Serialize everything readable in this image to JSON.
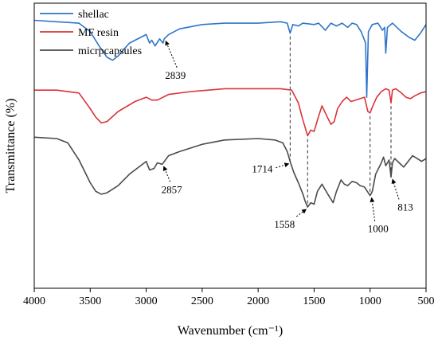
{
  "chart_data": {
    "type": "line",
    "xlabel": "Wavenumber (cm⁻¹)",
    "ylabel": "Transmittance (%)",
    "xlim": [
      4000,
      500
    ],
    "x_reversed": true,
    "x_ticks": [
      4000,
      3500,
      3000,
      2500,
      2000,
      1500,
      1000,
      500
    ],
    "y_ticks": [],
    "grid": false,
    "legend_position": "top-left",
    "series": [
      {
        "name": "shellac",
        "color": "#2e75c8",
        "points": [
          [
            4000,
            0.94
          ],
          [
            3800,
            0.935
          ],
          [
            3600,
            0.93
          ],
          [
            3500,
            0.9
          ],
          [
            3420,
            0.85
          ],
          [
            3350,
            0.81
          ],
          [
            3300,
            0.8
          ],
          [
            3250,
            0.815
          ],
          [
            3150,
            0.86
          ],
          [
            3050,
            0.88
          ],
          [
            3000,
            0.89
          ],
          [
            2970,
            0.86
          ],
          [
            2950,
            0.87
          ],
          [
            2920,
            0.85
          ],
          [
            2880,
            0.875
          ],
          [
            2850,
            0.86
          ],
          [
            2839,
            0.875
          ],
          [
            2800,
            0.89
          ],
          [
            2700,
            0.91
          ],
          [
            2500,
            0.925
          ],
          [
            2300,
            0.93
          ],
          [
            2000,
            0.93
          ],
          [
            1800,
            0.935
          ],
          [
            1740,
            0.93
          ],
          [
            1714,
            0.895
          ],
          [
            1690,
            0.925
          ],
          [
            1640,
            0.92
          ],
          [
            1600,
            0.93
          ],
          [
            1500,
            0.925
          ],
          [
            1460,
            0.93
          ],
          [
            1400,
            0.905
          ],
          [
            1350,
            0.93
          ],
          [
            1300,
            0.92
          ],
          [
            1250,
            0.93
          ],
          [
            1200,
            0.915
          ],
          [
            1160,
            0.93
          ],
          [
            1120,
            0.925
          ],
          [
            1080,
            0.9
          ],
          [
            1040,
            0.86
          ],
          [
            1030,
            0.67
          ],
          [
            1015,
            0.9
          ],
          [
            980,
            0.925
          ],
          [
            930,
            0.93
          ],
          [
            890,
            0.905
          ],
          [
            870,
            0.915
          ],
          [
            860,
            0.825
          ],
          [
            845,
            0.915
          ],
          [
            800,
            0.93
          ],
          [
            720,
            0.9
          ],
          [
            650,
            0.88
          ],
          [
            600,
            0.87
          ],
          [
            550,
            0.895
          ],
          [
            500,
            0.925
          ]
        ]
      },
      {
        "name": "MF resin",
        "color": "#d9343a",
        "points": [
          [
            4000,
            0.695
          ],
          [
            3800,
            0.695
          ],
          [
            3600,
            0.685
          ],
          [
            3500,
            0.63
          ],
          [
            3450,
            0.6
          ],
          [
            3400,
            0.58
          ],
          [
            3350,
            0.585
          ],
          [
            3250,
            0.62
          ],
          [
            3100,
            0.655
          ],
          [
            3000,
            0.67
          ],
          [
            2950,
            0.66
          ],
          [
            2900,
            0.66
          ],
          [
            2800,
            0.68
          ],
          [
            2600,
            0.69
          ],
          [
            2300,
            0.7
          ],
          [
            2000,
            0.7
          ],
          [
            1800,
            0.7
          ],
          [
            1700,
            0.695
          ],
          [
            1640,
            0.65
          ],
          [
            1600,
            0.59
          ],
          [
            1558,
            0.535
          ],
          [
            1530,
            0.555
          ],
          [
            1500,
            0.55
          ],
          [
            1470,
            0.59
          ],
          [
            1430,
            0.64
          ],
          [
            1400,
            0.615
          ],
          [
            1350,
            0.575
          ],
          [
            1320,
            0.585
          ],
          [
            1290,
            0.63
          ],
          [
            1250,
            0.655
          ],
          [
            1210,
            0.67
          ],
          [
            1170,
            0.655
          ],
          [
            1130,
            0.66
          ],
          [
            1090,
            0.665
          ],
          [
            1050,
            0.67
          ],
          [
            1020,
            0.62
          ],
          [
            1000,
            0.615
          ],
          [
            975,
            0.64
          ],
          [
            940,
            0.67
          ],
          [
            900,
            0.69
          ],
          [
            860,
            0.7
          ],
          [
            830,
            0.695
          ],
          [
            813,
            0.65
          ],
          [
            800,
            0.695
          ],
          [
            770,
            0.7
          ],
          [
            720,
            0.685
          ],
          [
            680,
            0.67
          ],
          [
            640,
            0.665
          ],
          [
            600,
            0.675
          ],
          [
            550,
            0.685
          ],
          [
            500,
            0.69
          ]
        ]
      },
      {
        "name": "micrpcapsules",
        "color": "#4b4b4b",
        "points": [
          [
            4000,
            0.53
          ],
          [
            3800,
            0.525
          ],
          [
            3700,
            0.51
          ],
          [
            3600,
            0.45
          ],
          [
            3500,
            0.37
          ],
          [
            3450,
            0.34
          ],
          [
            3400,
            0.33
          ],
          [
            3350,
            0.335
          ],
          [
            3250,
            0.36
          ],
          [
            3150,
            0.4
          ],
          [
            3050,
            0.43
          ],
          [
            3000,
            0.445
          ],
          [
            2970,
            0.415
          ],
          [
            2930,
            0.42
          ],
          [
            2900,
            0.44
          ],
          [
            2857,
            0.435
          ],
          [
            2800,
            0.465
          ],
          [
            2700,
            0.48
          ],
          [
            2500,
            0.505
          ],
          [
            2300,
            0.52
          ],
          [
            2000,
            0.525
          ],
          [
            1850,
            0.52
          ],
          [
            1780,
            0.51
          ],
          [
            1740,
            0.48
          ],
          [
            1714,
            0.445
          ],
          [
            1680,
            0.405
          ],
          [
            1640,
            0.37
          ],
          [
            1600,
            0.33
          ],
          [
            1580,
            0.305
          ],
          [
            1558,
            0.285
          ],
          [
            1530,
            0.3
          ],
          [
            1500,
            0.295
          ],
          [
            1470,
            0.34
          ],
          [
            1430,
            0.365
          ],
          [
            1400,
            0.345
          ],
          [
            1370,
            0.325
          ],
          [
            1330,
            0.3
          ],
          [
            1300,
            0.34
          ],
          [
            1260,
            0.38
          ],
          [
            1230,
            0.365
          ],
          [
            1200,
            0.36
          ],
          [
            1160,
            0.375
          ],
          [
            1120,
            0.37
          ],
          [
            1090,
            0.36
          ],
          [
            1050,
            0.355
          ],
          [
            1000,
            0.325
          ],
          [
            980,
            0.34
          ],
          [
            950,
            0.4
          ],
          [
            900,
            0.44
          ],
          [
            880,
            0.46
          ],
          [
            860,
            0.43
          ],
          [
            830,
            0.45
          ],
          [
            813,
            0.39
          ],
          [
            800,
            0.44
          ],
          [
            780,
            0.455
          ],
          [
            740,
            0.44
          ],
          [
            700,
            0.425
          ],
          [
            660,
            0.445
          ],
          [
            620,
            0.465
          ],
          [
            580,
            0.455
          ],
          [
            540,
            0.445
          ],
          [
            500,
            0.455
          ]
        ]
      }
    ],
    "reference_lines": [
      1714,
      1558,
      1000,
      813
    ],
    "annotations": [
      {
        "text": "2839",
        "series": "shellac",
        "wavenumber": 2839
      },
      {
        "text": "2857",
        "series": "micrpcapsules",
        "wavenumber": 2857
      },
      {
        "text": "1714",
        "series": "micrpcapsules",
        "wavenumber": 1714
      },
      {
        "text": "1558",
        "series": "micrpcapsules",
        "wavenumber": 1558
      },
      {
        "text": "1000",
        "series": "micrpcapsules",
        "wavenumber": 1000
      },
      {
        "text": "813",
        "series": "micrpcapsules",
        "wavenumber": 813
      }
    ]
  }
}
